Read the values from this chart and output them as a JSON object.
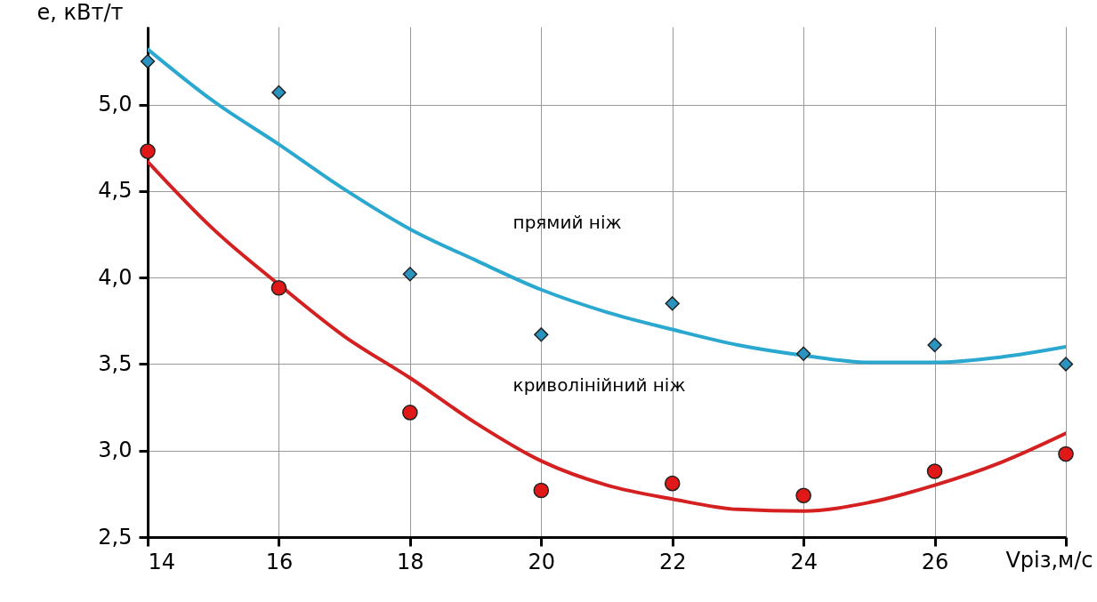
{
  "chart_data": {
    "type": "scatter",
    "xlabel": "Vріз,м/с",
    "ylabel": "е, кВт/т",
    "xlim": [
      14,
      28
    ],
    "ylim": [
      2.5,
      5.45
    ],
    "xticks": [
      14,
      16,
      18,
      20,
      22,
      24,
      26,
      {
        "value": 28,
        "label": null
      }
    ],
    "yticks": [
      {
        "value": 2.5,
        "label": "2,5"
      },
      {
        "value": 3.0,
        "label": "3,0"
      },
      {
        "value": 3.5,
        "label": "3,5"
      },
      {
        "value": 4.0,
        "label": "4,0"
      },
      {
        "value": 4.5,
        "label": "4,5"
      },
      {
        "value": 5.0,
        "label": "5,0"
      }
    ],
    "grid": true,
    "series": [
      {
        "type": "line",
        "color": "#2aa8d0",
        "line_style": "solid",
        "x": [
          14,
          15,
          16,
          17,
          18,
          19,
          20,
          21,
          22,
          23,
          24,
          25,
          26,
          27,
          28
        ],
        "values": [
          5.32,
          5.02,
          4.77,
          4.51,
          4.28,
          4.1,
          3.93,
          3.8,
          3.7,
          3.61,
          3.55,
          3.51,
          3.51,
          3.54,
          3.6
        ]
      },
      {
        "type": "line",
        "color": "#d42020",
        "line_style": "solid",
        "x": [
          14,
          15,
          16,
          17,
          18,
          19,
          20,
          21,
          22,
          23,
          24,
          25,
          26,
          27,
          28
        ],
        "values": [
          4.67,
          4.28,
          3.96,
          3.66,
          3.42,
          3.16,
          2.94,
          2.8,
          2.72,
          2.66,
          2.65,
          2.7,
          2.8,
          2.93,
          3.1
        ]
      },
      {
        "marker": "diamond",
        "color": "#2a93c0",
        "x": [
          14,
          16,
          18,
          20,
          22,
          24,
          26,
          28
        ],
        "values": [
          5.25,
          5.07,
          4.02,
          3.67,
          3.85,
          3.56,
          3.61,
          3.5
        ]
      },
      {
        "marker": "circle",
        "color": "#e01818",
        "x": [
          14,
          16,
          18,
          20,
          22,
          24,
          26,
          28
        ],
        "values": [
          4.73,
          3.94,
          3.22,
          2.77,
          2.81,
          2.74,
          2.88,
          2.98
        ]
      }
    ],
    "annotations": [
      {
        "text": "прямий ніж",
        "x": 19,
        "y": 4.1
      },
      {
        "text": "криволінійний ніж",
        "x": 19,
        "y": 3.16
      }
    ]
  }
}
